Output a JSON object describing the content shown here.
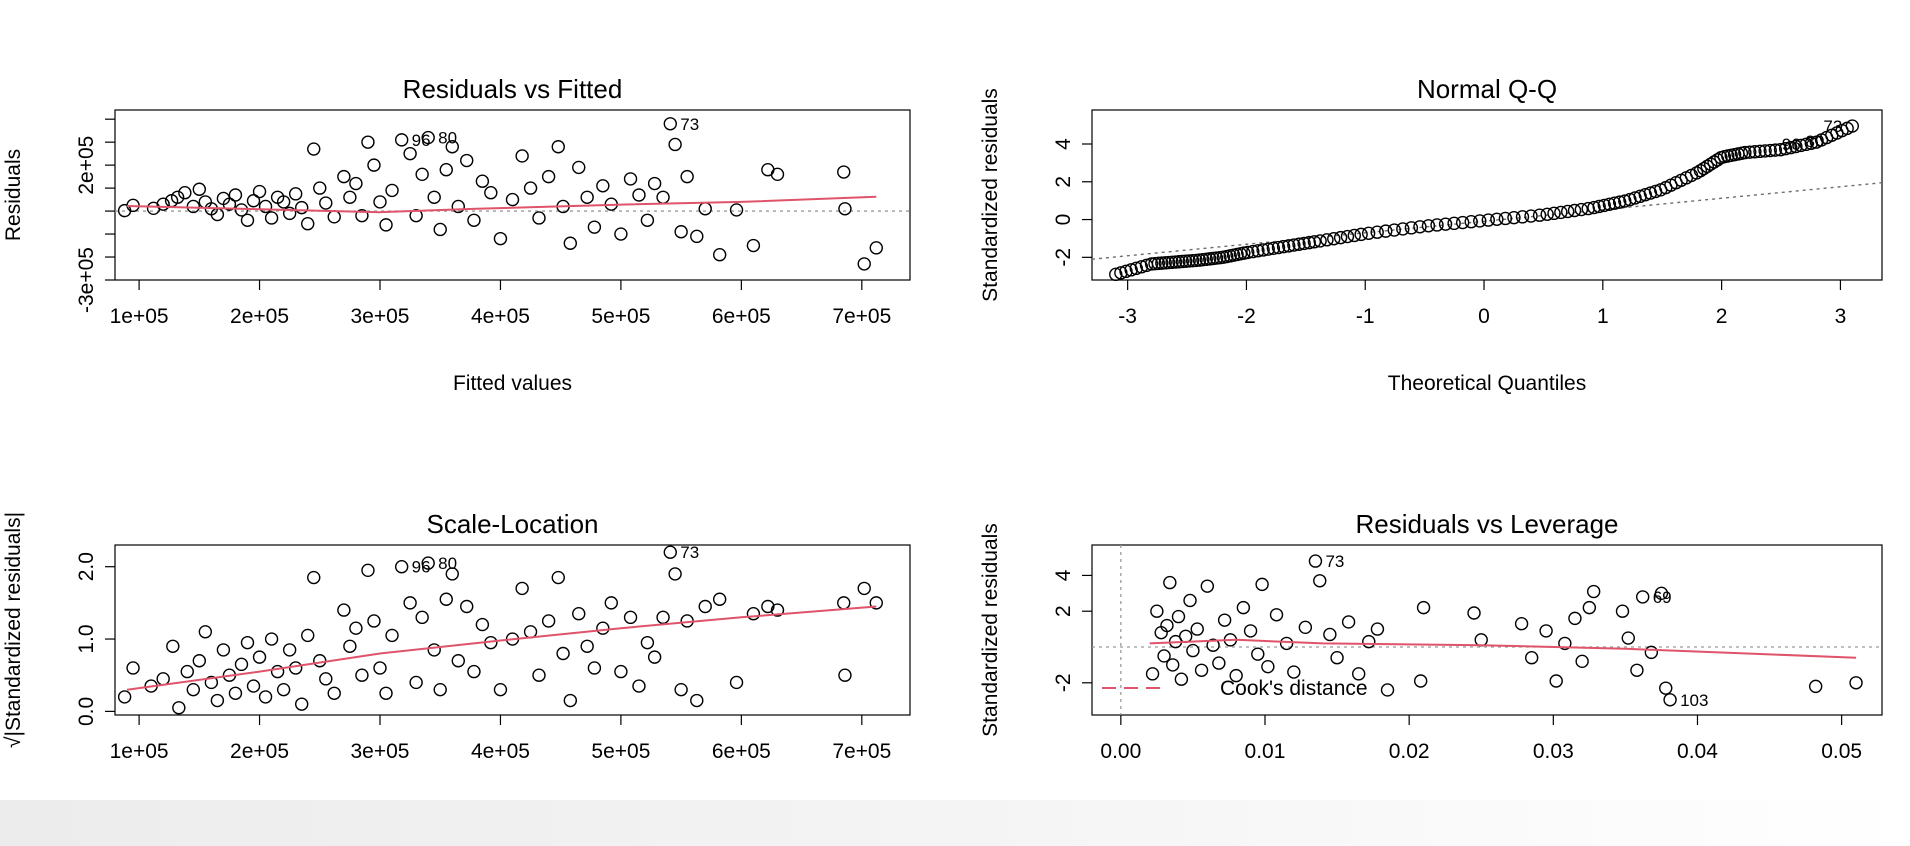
{
  "chart_data": [
    {
      "type": "scatter",
      "title": "Residuals vs Fitted",
      "xlabel": "Fitted values",
      "ylabel": "Residuals",
      "xlim": [
        80000,
        740000
      ],
      "ylim": [
        -300000,
        440000
      ],
      "xticks": [
        100000,
        200000,
        300000,
        400000,
        500000,
        600000,
        700000
      ],
      "xtick_labels": [
        "1e+05",
        "2e+05",
        "3e+05",
        "4e+05",
        "5e+05",
        "6e+05",
        "7e+05"
      ],
      "yticks": [
        -300000,
        -200000,
        -100000,
        0,
        100000,
        200000,
        300000,
        400000
      ],
      "ytick_labels": [
        "-3e+05",
        "",
        "",
        "",
        "",
        "2e+05",
        "",
        ""
      ],
      "hline": 0,
      "points": [
        [
          88000,
          2000
        ],
        [
          95000,
          25000
        ],
        [
          112000,
          12000
        ],
        [
          120000,
          30000
        ],
        [
          127000,
          45000
        ],
        [
          132000,
          60000
        ],
        [
          138000,
          80000
        ],
        [
          145000,
          20000
        ],
        [
          150000,
          95000
        ],
        [
          155000,
          40000
        ],
        [
          160000,
          10000
        ],
        [
          165000,
          -15000
        ],
        [
          170000,
          55000
        ],
        [
          175000,
          30000
        ],
        [
          180000,
          70000
        ],
        [
          185000,
          5000
        ],
        [
          190000,
          -40000
        ],
        [
          195000,
          45000
        ],
        [
          200000,
          85000
        ],
        [
          205000,
          20000
        ],
        [
          210000,
          -30000
        ],
        [
          215000,
          60000
        ],
        [
          220000,
          40000
        ],
        [
          225000,
          -10000
        ],
        [
          230000,
          75000
        ],
        [
          235000,
          15000
        ],
        [
          240000,
          -55000
        ],
        [
          245000,
          270000
        ],
        [
          250000,
          100000
        ],
        [
          255000,
          35000
        ],
        [
          262000,
          -25000
        ],
        [
          270000,
          150000
        ],
        [
          275000,
          60000
        ],
        [
          280000,
          120000
        ],
        [
          285000,
          -20000
        ],
        [
          290000,
          300000
        ],
        [
          295000,
          200000
        ],
        [
          300000,
          40000
        ],
        [
          305000,
          -60000
        ],
        [
          310000,
          90000
        ],
        [
          318000,
          310000
        ],
        [
          325000,
          250000
        ],
        [
          330000,
          -20000
        ],
        [
          335000,
          160000
        ],
        [
          340000,
          320000
        ],
        [
          345000,
          60000
        ],
        [
          350000,
          -80000
        ],
        [
          355000,
          180000
        ],
        [
          360000,
          280000
        ],
        [
          365000,
          20000
        ],
        [
          372000,
          220000
        ],
        [
          378000,
          -40000
        ],
        [
          385000,
          130000
        ],
        [
          392000,
          80000
        ],
        [
          400000,
          -120000
        ],
        [
          410000,
          50000
        ],
        [
          418000,
          240000
        ],
        [
          425000,
          100000
        ],
        [
          432000,
          -30000
        ],
        [
          440000,
          150000
        ],
        [
          448000,
          280000
        ],
        [
          452000,
          20000
        ],
        [
          458000,
          -140000
        ],
        [
          465000,
          190000
        ],
        [
          472000,
          60000
        ],
        [
          478000,
          -70000
        ],
        [
          485000,
          110000
        ],
        [
          492000,
          30000
        ],
        [
          500000,
          -100000
        ],
        [
          508000,
          140000
        ],
        [
          515000,
          70000
        ],
        [
          522000,
          -40000
        ],
        [
          528000,
          120000
        ],
        [
          535000,
          60000
        ],
        [
          541000,
          380000
        ],
        [
          545000,
          290000
        ],
        [
          550000,
          -90000
        ],
        [
          555000,
          150000
        ],
        [
          563000,
          -110000
        ],
        [
          570000,
          10000
        ],
        [
          582000,
          -190000
        ],
        [
          596000,
          5000
        ],
        [
          610000,
          -150000
        ],
        [
          622000,
          180000
        ],
        [
          630000,
          160000
        ],
        [
          685000,
          170000
        ],
        [
          686000,
          10000
        ],
        [
          702000,
          -230000
        ],
        [
          712000,
          -160000
        ]
      ],
      "smoother": [
        [
          90000,
          22000
        ],
        [
          200000,
          8000
        ],
        [
          300000,
          -5000
        ],
        [
          380000,
          10000
        ],
        [
          500000,
          28000
        ],
        [
          600000,
          40000
        ],
        [
          712000,
          62000
        ]
      ],
      "labels": [
        {
          "x": 541000,
          "y": 380000,
          "text": "73"
        },
        {
          "x": 318000,
          "y": 310000,
          "text": "96"
        },
        {
          "x": 340000,
          "y": 320000,
          "text": "80"
        }
      ]
    },
    {
      "type": "scatter",
      "title": "Normal Q-Q",
      "xlabel": "Theoretical Quantiles",
      "ylabel": "Standardized residuals",
      "xlim": [
        -3.3,
        3.35
      ],
      "ylim": [
        -3.2,
        5.8
      ],
      "xticks": [
        -3,
        -2,
        -1,
        0,
        1,
        2,
        3
      ],
      "xtick_labels": [
        "-3",
        "-2",
        "-1",
        "0",
        "1",
        "2",
        "3"
      ],
      "yticks": [
        -2,
        0,
        2,
        4
      ],
      "ytick_labels": [
        "-2",
        "0",
        "2",
        "4"
      ],
      "refline": [
        [
          -3.3,
          -2.1
        ],
        [
          3.35,
          1.95
        ]
      ],
      "qq_curve": [
        [
          -3.1,
          -2.9
        ],
        [
          -2.8,
          -2.35
        ],
        [
          -2.6,
          -2.25
        ],
        [
          -2.4,
          -2.15
        ],
        [
          -2.2,
          -2.0
        ],
        [
          -2.0,
          -1.75
        ],
        [
          -1.7,
          -1.45
        ],
        [
          -1.4,
          -1.15
        ],
        [
          -1.0,
          -0.75
        ],
        [
          -0.5,
          -0.35
        ],
        [
          0.0,
          -0.05
        ],
        [
          0.5,
          0.25
        ],
        [
          0.9,
          0.6
        ],
        [
          1.2,
          1.0
        ],
        [
          1.5,
          1.6
        ],
        [
          1.8,
          2.5
        ],
        [
          2.0,
          3.3
        ],
        [
          2.2,
          3.55
        ],
        [
          2.5,
          3.7
        ],
        [
          2.8,
          4.1
        ],
        [
          3.1,
          4.95
        ]
      ],
      "qq_n": 140,
      "labels": [
        {
          "x": 3.1,
          "y": 4.95,
          "text": "73"
        },
        {
          "x": 2.75,
          "y": 4.0,
          "text": "96"
        },
        {
          "x": 2.95,
          "y": 4.15,
          "text": "80"
        }
      ]
    },
    {
      "type": "scatter",
      "title": "Scale-Location",
      "xlabel": "Fitted values",
      "ylabel": "√|Standardized residuals|",
      "xlim": [
        80000,
        740000
      ],
      "ylim": [
        -0.05,
        2.3
      ],
      "xticks": [
        100000,
        200000,
        300000,
        400000,
        500000,
        600000,
        700000
      ],
      "xtick_labels": [
        "1e+05",
        "2e+05",
        "3e+05",
        "4e+05",
        "5e+05",
        "6e+05",
        "7e+05"
      ],
      "yticks": [
        0.0,
        1.0,
        2.0
      ],
      "ytick_labels": [
        "0.0",
        "1.0",
        "2.0"
      ],
      "points": [
        [
          88000,
          0.2
        ],
        [
          95000,
          0.6
        ],
        [
          110000,
          0.35
        ],
        [
          120000,
          0.45
        ],
        [
          128000,
          0.9
        ],
        [
          133000,
          0.05
        ],
        [
          140000,
          0.55
        ],
        [
          145000,
          0.3
        ],
        [
          150000,
          0.7
        ],
        [
          155000,
          1.1
        ],
        [
          160000,
          0.4
        ],
        [
          165000,
          0.15
        ],
        [
          170000,
          0.85
        ],
        [
          175000,
          0.5
        ],
        [
          180000,
          0.25
        ],
        [
          185000,
          0.65
        ],
        [
          190000,
          0.95
        ],
        [
          195000,
          0.35
        ],
        [
          200000,
          0.75
        ],
        [
          205000,
          0.2
        ],
        [
          210000,
          1.0
        ],
        [
          215000,
          0.55
        ],
        [
          220000,
          0.3
        ],
        [
          225000,
          0.85
        ],
        [
          230000,
          0.6
        ],
        [
          235000,
          0.1
        ],
        [
          240000,
          1.05
        ],
        [
          245000,
          1.85
        ],
        [
          250000,
          0.7
        ],
        [
          255000,
          0.45
        ],
        [
          262000,
          0.25
        ],
        [
          270000,
          1.4
        ],
        [
          275000,
          0.9
        ],
        [
          280000,
          1.15
        ],
        [
          285000,
          0.5
        ],
        [
          290000,
          1.95
        ],
        [
          295000,
          1.25
        ],
        [
          300000,
          0.6
        ],
        [
          305000,
          0.25
        ],
        [
          310000,
          1.05
        ],
        [
          318000,
          2.0
        ],
        [
          325000,
          1.5
        ],
        [
          330000,
          0.4
        ],
        [
          335000,
          1.3
        ],
        [
          340000,
          2.05
        ],
        [
          345000,
          0.85
        ],
        [
          350000,
          0.3
        ],
        [
          355000,
          1.55
        ],
        [
          360000,
          1.9
        ],
        [
          365000,
          0.7
        ],
        [
          372000,
          1.45
        ],
        [
          378000,
          0.55
        ],
        [
          385000,
          1.2
        ],
        [
          392000,
          0.95
        ],
        [
          400000,
          0.3
        ],
        [
          410000,
          1.0
        ],
        [
          418000,
          1.7
        ],
        [
          425000,
          1.1
        ],
        [
          432000,
          0.5
        ],
        [
          440000,
          1.25
        ],
        [
          448000,
          1.85
        ],
        [
          452000,
          0.8
        ],
        [
          458000,
          0.15
        ],
        [
          465000,
          1.35
        ],
        [
          472000,
          0.9
        ],
        [
          478000,
          0.6
        ],
        [
          485000,
          1.15
        ],
        [
          492000,
          1.5
        ],
        [
          500000,
          0.55
        ],
        [
          508000,
          1.3
        ],
        [
          515000,
          0.35
        ],
        [
          522000,
          0.95
        ],
        [
          528000,
          0.75
        ],
        [
          535000,
          1.3
        ],
        [
          541000,
          2.2
        ],
        [
          545000,
          1.9
        ],
        [
          550000,
          0.3
        ],
        [
          555000,
          1.25
        ],
        [
          563000,
          0.15
        ],
        [
          570000,
          1.45
        ],
        [
          582000,
          1.55
        ],
        [
          596000,
          0.4
        ],
        [
          610000,
          1.35
        ],
        [
          622000,
          1.45
        ],
        [
          630000,
          1.4
        ],
        [
          685000,
          1.5
        ],
        [
          686000,
          0.5
        ],
        [
          702000,
          1.7
        ],
        [
          712000,
          1.5
        ]
      ],
      "smoother": [
        [
          90000,
          0.3
        ],
        [
          200000,
          0.55
        ],
        [
          300000,
          0.8
        ],
        [
          400000,
          0.98
        ],
        [
          500000,
          1.15
        ],
        [
          600000,
          1.3
        ],
        [
          712000,
          1.45
        ]
      ],
      "labels": [
        {
          "x": 541000,
          "y": 2.2,
          "text": "73"
        },
        {
          "x": 318000,
          "y": 2.0,
          "text": "96"
        },
        {
          "x": 340000,
          "y": 2.05,
          "text": "80"
        }
      ]
    },
    {
      "type": "scatter",
      "title": "Residuals vs Leverage",
      "xlabel": "Leverage",
      "ylabel": "Standardized residuals",
      "xlim": [
        -0.002,
        0.0528
      ],
      "ylim": [
        -3.8,
        5.7
      ],
      "xticks": [
        0.0,
        0.01,
        0.02,
        0.03,
        0.04,
        0.05
      ],
      "xtick_labels": [
        "0.00",
        "0.01",
        "0.02",
        "0.03",
        "0.04",
        "0.05"
      ],
      "yticks": [
        -2,
        2,
        4
      ],
      "ytick_labels": [
        "-2",
        "2",
        "4"
      ],
      "hline": 0,
      "vline": 0,
      "points": [
        [
          0.0022,
          -1.5
        ],
        [
          0.0025,
          2.0
        ],
        [
          0.0028,
          0.8
        ],
        [
          0.003,
          -0.5
        ],
        [
          0.0032,
          1.2
        ],
        [
          0.0034,
          3.6
        ],
        [
          0.0036,
          -1.0
        ],
        [
          0.0038,
          0.3
        ],
        [
          0.004,
          1.7
        ],
        [
          0.0042,
          -1.8
        ],
        [
          0.0045,
          0.6
        ],
        [
          0.0048,
          2.6
        ],
        [
          0.005,
          -0.2
        ],
        [
          0.0053,
          1.0
        ],
        [
          0.0056,
          -1.3
        ],
        [
          0.006,
          3.4
        ],
        [
          0.0064,
          0.1
        ],
        [
          0.0068,
          -0.9
        ],
        [
          0.0072,
          1.5
        ],
        [
          0.0076,
          0.4
        ],
        [
          0.008,
          -1.6
        ],
        [
          0.0085,
          2.2
        ],
        [
          0.009,
          0.9
        ],
        [
          0.0095,
          -0.4
        ],
        [
          0.0098,
          3.5
        ],
        [
          0.0102,
          -1.1
        ],
        [
          0.0108,
          1.8
        ],
        [
          0.0115,
          0.2
        ],
        [
          0.012,
          -1.4
        ],
        [
          0.0128,
          1.1
        ],
        [
          0.0135,
          4.8
        ],
        [
          0.0138,
          3.7
        ],
        [
          0.0145,
          0.7
        ],
        [
          0.015,
          -0.6
        ],
        [
          0.0158,
          1.4
        ],
        [
          0.0165,
          -1.5
        ],
        [
          0.0172,
          0.3
        ],
        [
          0.0178,
          1.0
        ],
        [
          0.0185,
          -2.4
        ],
        [
          0.021,
          2.2
        ],
        [
          0.0208,
          -1.9
        ],
        [
          0.0245,
          1.9
        ],
        [
          0.025,
          0.4
        ],
        [
          0.0278,
          1.3
        ],
        [
          0.0285,
          -0.6
        ],
        [
          0.0295,
          0.9
        ],
        [
          0.0302,
          -1.9
        ],
        [
          0.0308,
          0.2
        ],
        [
          0.0315,
          1.6
        ],
        [
          0.032,
          -0.8
        ],
        [
          0.0325,
          2.2
        ],
        [
          0.0328,
          3.1
        ],
        [
          0.0348,
          2.0
        ],
        [
          0.0352,
          0.5
        ],
        [
          0.0358,
          -1.3
        ],
        [
          0.0362,
          2.8
        ],
        [
          0.0368,
          -0.3
        ],
        [
          0.0375,
          3.0
        ],
        [
          0.0378,
          -2.3
        ],
        [
          0.0381,
          -2.95
        ],
        [
          0.0482,
          -2.2
        ],
        [
          0.051,
          -2.0
        ]
      ],
      "smoother": [
        [
          0.002,
          0.2
        ],
        [
          0.008,
          0.4
        ],
        [
          0.014,
          0.2
        ],
        [
          0.025,
          0.1
        ],
        [
          0.035,
          -0.1
        ],
        [
          0.051,
          -0.6
        ]
      ],
      "labels": [
        {
          "x": 0.0135,
          "y": 4.8,
          "text": "73"
        },
        {
          "x": 0.0362,
          "y": 2.8,
          "text": "69"
        },
        {
          "x": 0.0381,
          "y": -2.95,
          "text": "103"
        }
      ],
      "legend": "Cook's distance",
      "legend_position": "bottom-left"
    }
  ]
}
